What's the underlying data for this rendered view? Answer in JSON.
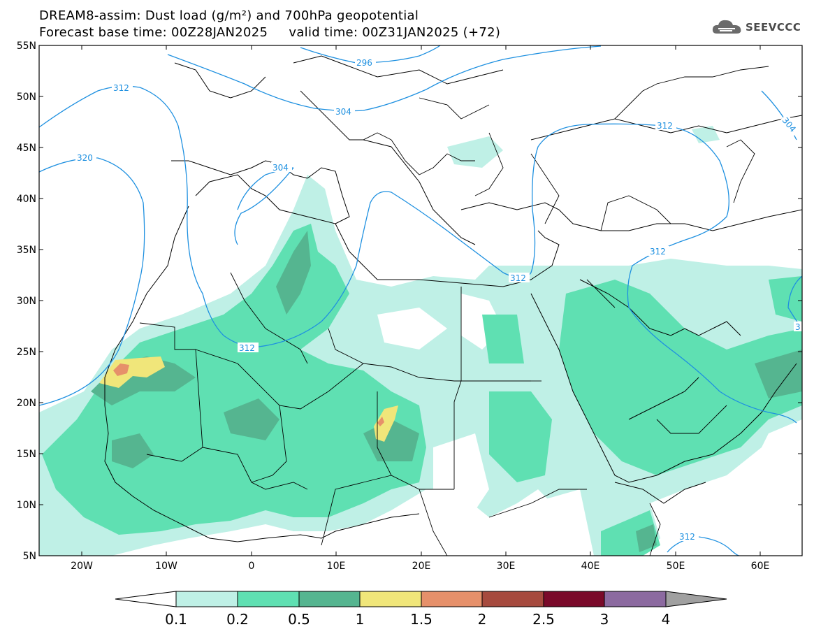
{
  "title_line1": "DREAM8-assim: Dust load (g/m²) and 700hPa geopotential",
  "title_line2": "Forecast base time: 00Z28JAN2025     valid time: 00Z31JAN2025 (+72)",
  "logo_text": "SEEVCCC",
  "lat_labels": [
    "55N",
    "50N",
    "45N",
    "40N",
    "35N",
    "30N",
    "25N",
    "20N",
    "15N",
    "10N",
    "5N"
  ],
  "lon_labels": [
    "20W",
    "10W",
    "0",
    "10E",
    "20E",
    "30E",
    "40E",
    "50E",
    "60E"
  ],
  "colorbar": {
    "labels": [
      "0.1",
      "0.2",
      "0.5",
      "1",
      "1.5",
      "2",
      "2.5",
      "3",
      "4"
    ],
    "colors": [
      "#bff0e6",
      "#5fe0b2",
      "#55b590",
      "#f0e67a",
      "#e6906a",
      "#a64a3e",
      "#7a0a2a",
      "#8c6aa0",
      "#a0a0a0"
    ]
  },
  "geopotential_labels": [
    "312",
    "296",
    "304",
    "320",
    "304",
    "312",
    "312",
    "304",
    "312",
    "312",
    "312",
    "3"
  ],
  "colors": {
    "contour": "#1e90e0",
    "border": "#000000"
  }
}
